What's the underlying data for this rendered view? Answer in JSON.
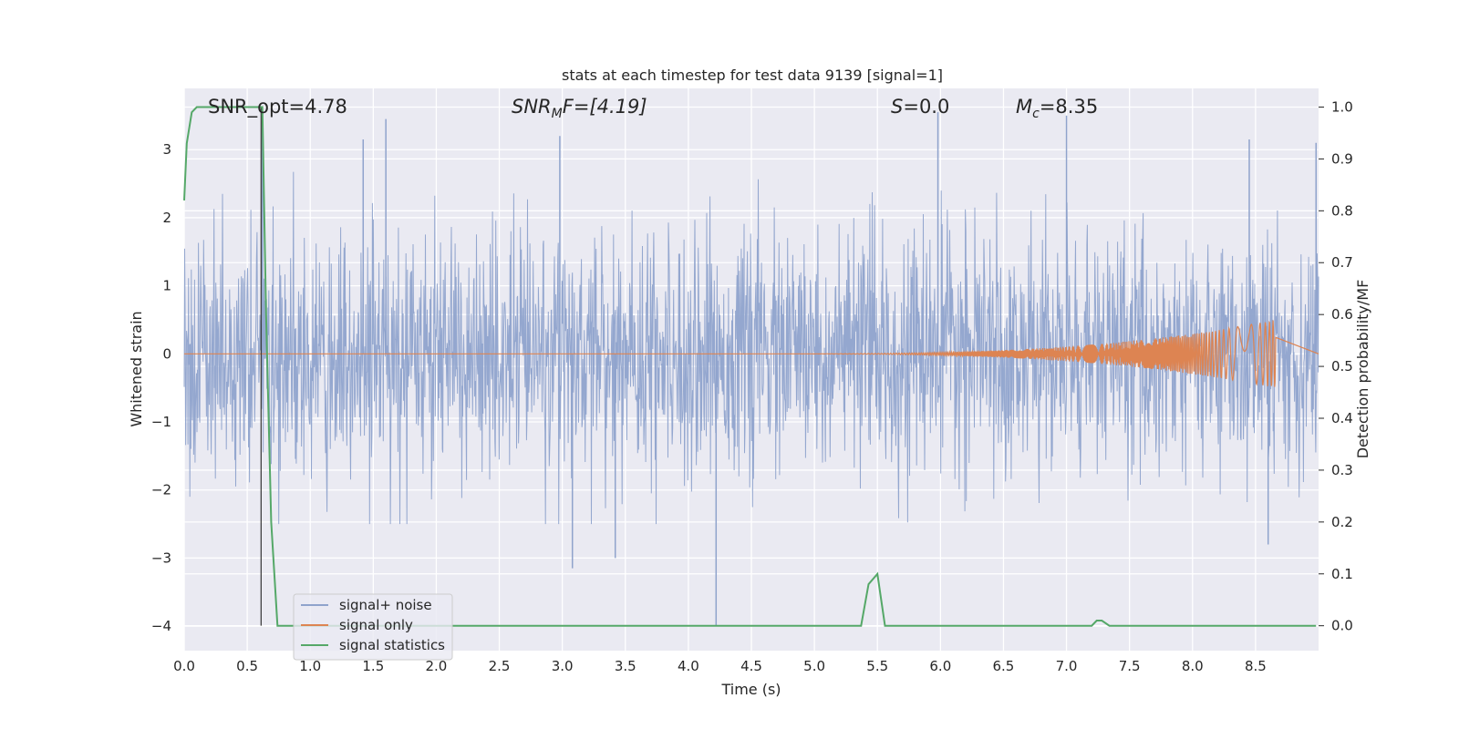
{
  "chart_data": {
    "type": "line",
    "title": "stats at each timestep for test data 9139 [signal=1]",
    "xlabel": "Time (s)",
    "ylabel": "Whitened strain",
    "y2label": "Detection probability/MF",
    "xlim": [
      0.0,
      9.0
    ],
    "ylim": [
      -4.36,
      3.9
    ],
    "y2lim": [
      -0.048,
      1.036
    ],
    "x_ticks": [
      "0.0",
      "0.5",
      "1.0",
      "1.5",
      "2.0",
      "2.5",
      "3.0",
      "3.5",
      "4.0",
      "4.5",
      "5.0",
      "5.5",
      "6.0",
      "6.5",
      "7.0",
      "7.5",
      "8.0",
      "8.5"
    ],
    "y_ticks": [
      "3",
      "2",
      "1",
      "0",
      "−1",
      "−2",
      "−3",
      "−4"
    ],
    "y2_ticks": [
      "1.0",
      "0.9",
      "0.8",
      "0.7",
      "0.6",
      "0.5",
      "0.4",
      "0.3",
      "0.2",
      "0.1",
      "0.0"
    ],
    "grid": true,
    "legend_position": "lower-left",
    "annotations": {
      "snr_opt": "SNR_opt=4.78",
      "snr_mf": "SNR",
      "snr_mf_sub": "M",
      "snr_mf_tail": "F=[4.19]",
      "s_label": "S",
      "s_value": "=0.0",
      "mc_label": "M",
      "mc_sub": "c",
      "mc_value": "=8.35"
    },
    "marker_line_x": 0.61,
    "series": [
      {
        "name": "signal+ noise",
        "color": "#8fa3cc",
        "description_note": "dense whitened noise, mostly within ±2 with spikes",
        "envelope_upper": 2.3,
        "envelope_lower": -1.9,
        "spikes": [
          [
            0.62,
            3.5
          ],
          [
            1.42,
            3.15
          ],
          [
            1.6,
            3.45
          ],
          [
            2.98,
            3.2
          ],
          [
            3.08,
            -3.15
          ],
          [
            3.42,
            -3.0
          ],
          [
            4.22,
            -4.0
          ],
          [
            5.98,
            3.55
          ],
          [
            7.0,
            3.5
          ],
          [
            8.45,
            3.15
          ],
          [
            8.98,
            3.1
          ],
          [
            8.6,
            -2.8
          ]
        ]
      },
      {
        "name": "signal only",
        "color": "#dd8452",
        "chirp_start": 4.5,
        "chirp_end": 8.66,
        "peak_amplitude": 0.5
      },
      {
        "name": "signal statistics",
        "color": "#55a868",
        "axis": "right",
        "x": [
          0.0,
          0.02,
          0.06,
          0.1,
          0.15,
          0.2,
          0.3,
          0.4,
          0.5,
          0.55,
          0.6,
          0.62,
          0.65,
          0.69,
          0.74,
          0.8,
          1.5,
          2.5,
          3.5,
          4.5,
          5.3,
          5.37,
          5.43,
          5.5,
          5.56,
          5.62,
          6.5,
          7.2,
          7.24,
          7.28,
          7.34,
          7.4,
          8.0,
          8.98
        ],
        "y": [
          0.82,
          0.93,
          0.99,
          1.0,
          1.0,
          1.0,
          1.0,
          1.0,
          1.0,
          1.0,
          1.0,
          1.0,
          0.6,
          0.2,
          0.0,
          0.0,
          0.0,
          0.0,
          0.0,
          0.0,
          0.0,
          0.0,
          0.08,
          0.1,
          0.0,
          0.0,
          0.0,
          0.0,
          0.01,
          0.01,
          0.0,
          0.0,
          0.0,
          0.0
        ]
      }
    ]
  }
}
